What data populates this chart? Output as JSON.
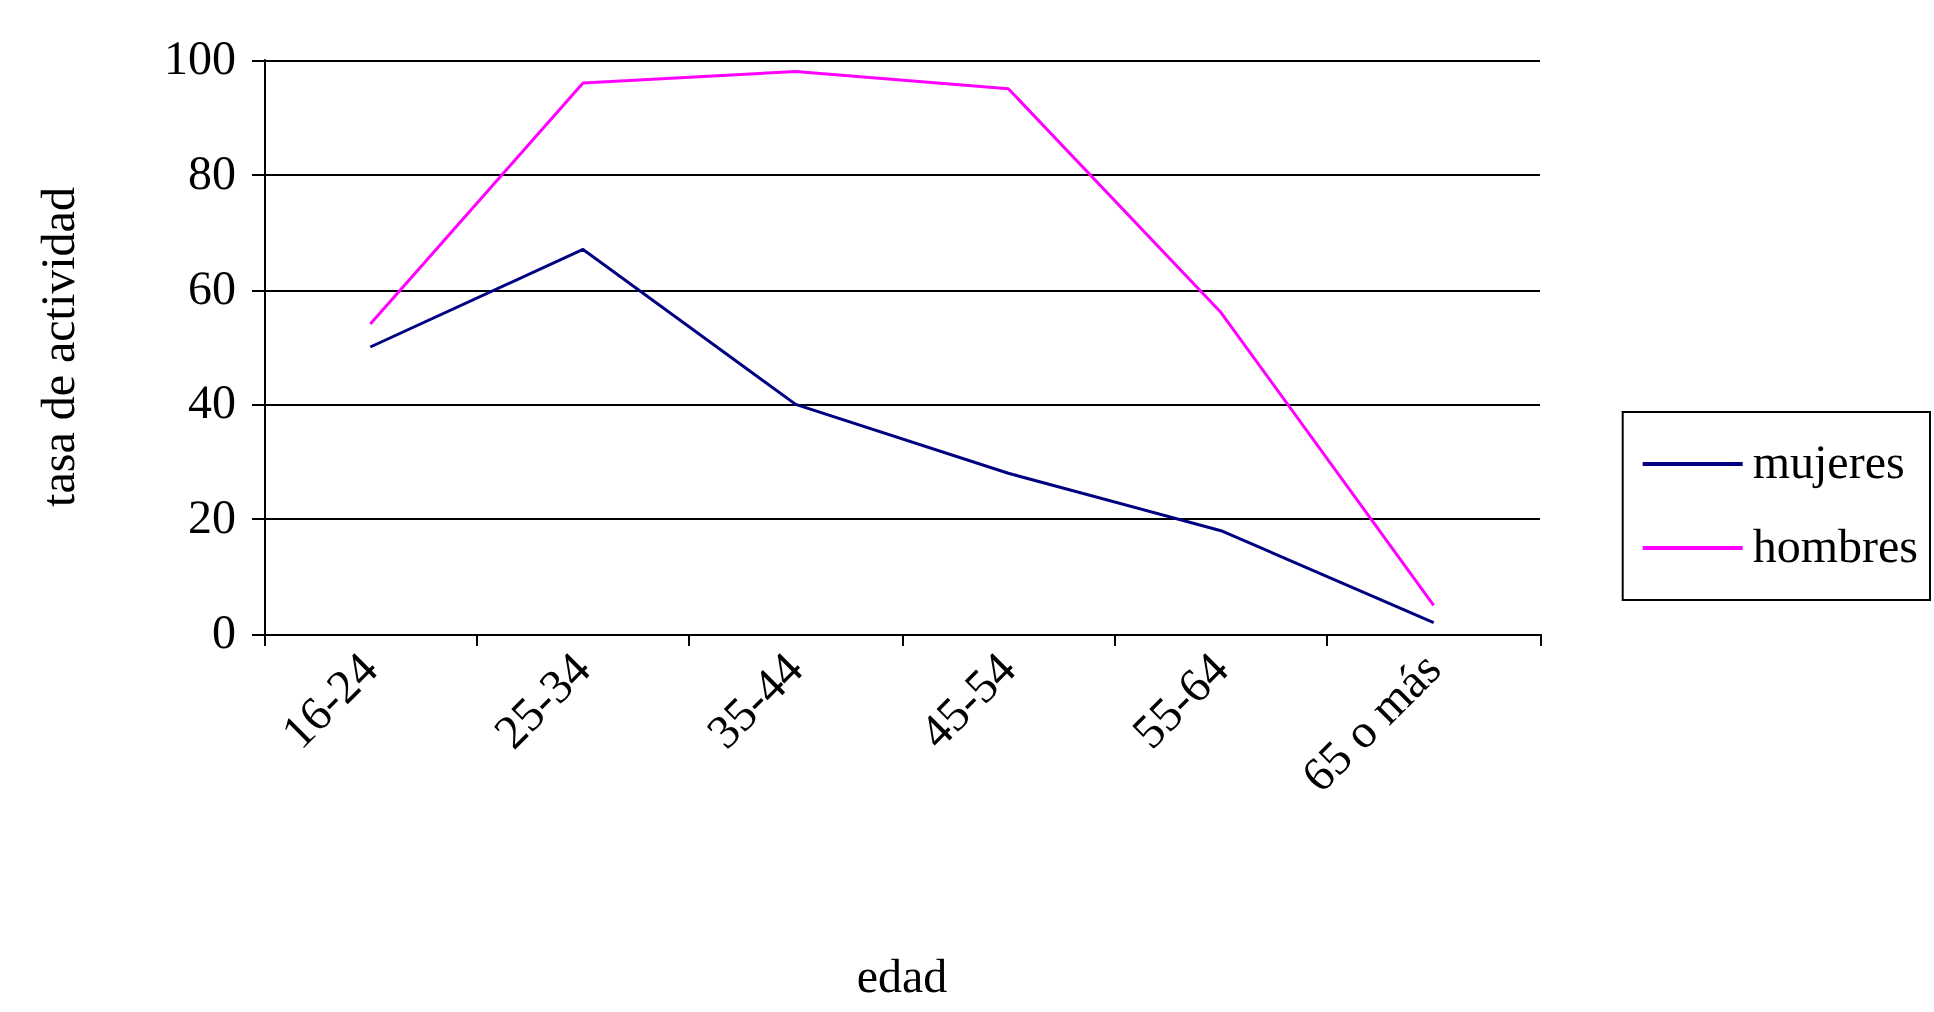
{
  "chart_data": {
    "type": "line",
    "xlabel": "edad",
    "ylabel": "tasa de actividad",
    "categories": [
      "16-24",
      "25-34",
      "35-44",
      "45-54",
      "55-64",
      "65 o más"
    ],
    "series": [
      {
        "name": "mujeres",
        "color": "#000080",
        "values": [
          50,
          67,
          40,
          28,
          18,
          2
        ]
      },
      {
        "name": "hombres",
        "color": "#ff00ff",
        "values": [
          54,
          96,
          98,
          95,
          56,
          5
        ]
      }
    ],
    "ylim": [
      0,
      100
    ],
    "yticks": [
      0,
      20,
      40,
      60,
      80,
      100
    ],
    "grid": "y",
    "legend": "right",
    "marker": "none"
  }
}
